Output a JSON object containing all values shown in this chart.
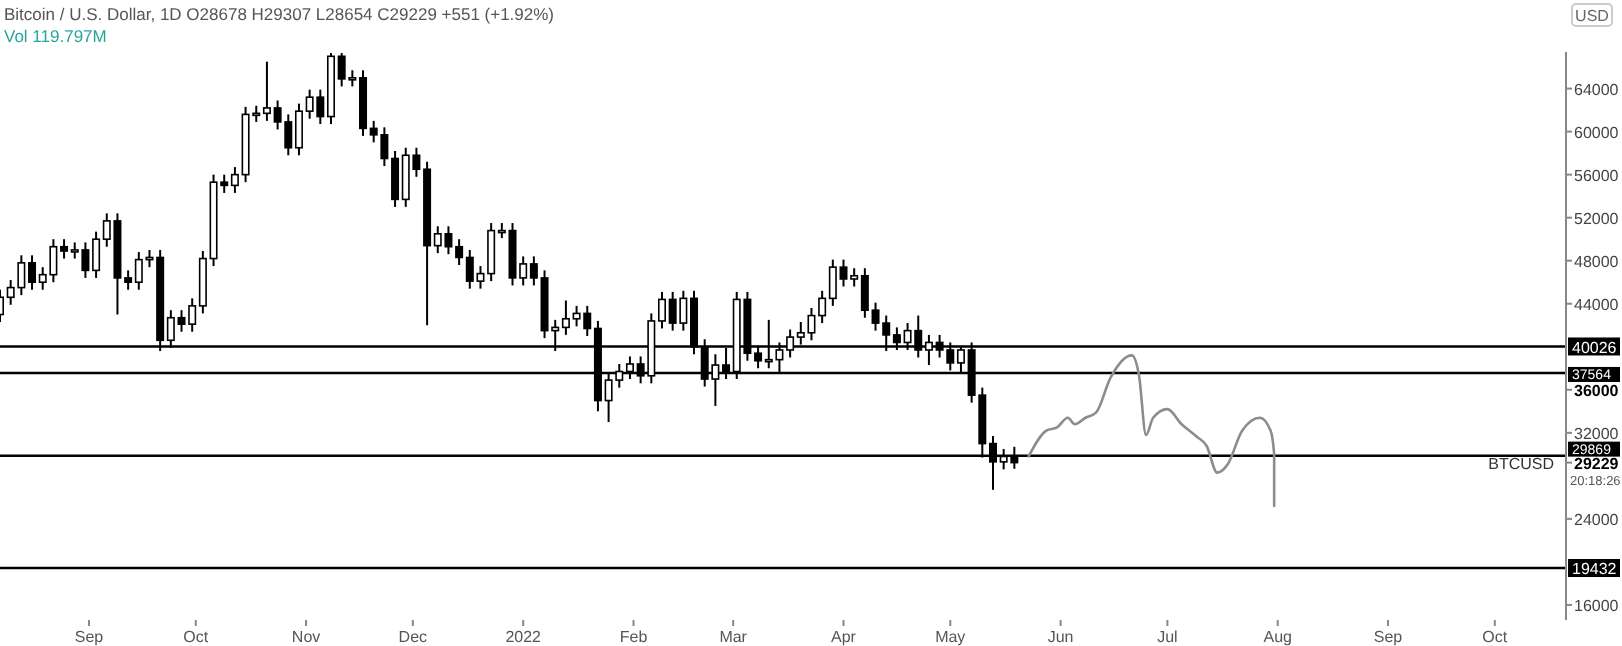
{
  "chart_data": {
    "type": "candlestick",
    "title": "Bitcoin / U.S. Dollar, 1D  O28678 H29307 L28654 C29229 +551 (+1.92%)",
    "ylabel": "USD",
    "xlim": [
      "2021-08-07",
      "2022-10-21"
    ],
    "ylim": [
      14600,
      67400
    ],
    "xticks": [
      {
        "value": "2021-09-01",
        "label": "Sep"
      },
      {
        "value": "2021-10-01",
        "label": "Oct"
      },
      {
        "value": "2021-11-01",
        "label": "Nov"
      },
      {
        "value": "2021-12-01",
        "label": "Dec"
      },
      {
        "value": "2022-01-01",
        "label": "2022"
      },
      {
        "value": "2022-02-01",
        "label": "Feb"
      },
      {
        "value": "2022-03-01",
        "label": "Mar"
      },
      {
        "value": "2022-04-01",
        "label": "Apr"
      },
      {
        "value": "2022-05-01",
        "label": "May"
      },
      {
        "value": "2022-06-01",
        "label": "Jun"
      },
      {
        "value": "2022-07-01",
        "label": "Jul"
      },
      {
        "value": "2022-08-01",
        "label": "Aug"
      },
      {
        "value": "2022-09-01",
        "label": "Sep"
      },
      {
        "value": "2022-10-01",
        "label": "Oct"
      }
    ],
    "yticks": [
      16000,
      24000,
      29229,
      32000,
      36000,
      44000,
      48000,
      52000,
      56000,
      60000,
      64000
    ],
    "x": [
      "2021-08-07",
      "2021-08-10",
      "2021-08-13",
      "2021-08-16",
      "2021-08-19",
      "2021-08-22",
      "2021-08-25",
      "2021-08-28",
      "2021-08-31",
      "2021-09-03",
      "2021-09-06",
      "2021-09-09",
      "2021-09-12",
      "2021-09-15",
      "2021-09-18",
      "2021-09-21",
      "2021-09-24",
      "2021-09-27",
      "2021-09-30",
      "2021-10-03",
      "2021-10-06",
      "2021-10-09",
      "2021-10-12",
      "2021-10-15",
      "2021-10-18",
      "2021-10-21",
      "2021-10-24",
      "2021-10-27",
      "2021-10-30",
      "2021-11-02",
      "2021-11-05",
      "2021-11-08",
      "2021-11-11",
      "2021-11-14",
      "2021-11-17",
      "2021-11-20",
      "2021-11-23",
      "2021-11-26",
      "2021-11-29",
      "2021-12-02",
      "2021-12-05",
      "2021-12-08",
      "2021-12-11",
      "2021-12-14",
      "2021-12-17",
      "2021-12-20",
      "2021-12-23",
      "2021-12-26",
      "2021-12-29",
      "2022-01-01",
      "2022-01-04",
      "2022-01-07",
      "2022-01-10",
      "2022-01-13",
      "2022-01-16",
      "2022-01-19",
      "2022-01-22",
      "2022-01-25",
      "2022-01-28",
      "2022-01-31",
      "2022-02-03",
      "2022-02-06",
      "2022-02-09",
      "2022-02-12",
      "2022-02-15",
      "2022-02-18",
      "2022-02-21",
      "2022-02-24",
      "2022-02-27",
      "2022-03-02",
      "2022-03-05",
      "2022-03-08",
      "2022-03-11",
      "2022-03-14",
      "2022-03-17",
      "2022-03-20",
      "2022-03-23",
      "2022-03-26",
      "2022-03-29",
      "2022-04-01",
      "2022-04-04",
      "2022-04-07",
      "2022-04-10",
      "2022-04-13",
      "2022-04-16",
      "2022-04-19",
      "2022-04-22",
      "2022-04-25",
      "2022-04-28",
      "2022-05-01",
      "2022-05-04",
      "2022-05-07",
      "2022-05-10",
      "2022-05-13",
      "2022-05-16",
      "2022-05-19"
    ],
    "ohlc": [
      [
        43000,
        45300,
        42300,
        44600
      ],
      [
        44600,
        46200,
        43900,
        45500
      ],
      [
        45500,
        48500,
        44800,
        47800
      ],
      [
        47800,
        48500,
        45300,
        46000
      ],
      [
        46000,
        47400,
        45300,
        46700
      ],
      [
        46700,
        50000,
        46000,
        49300
      ],
      [
        49300,
        50000,
        48200,
        48900
      ],
      [
        48900,
        49700,
        48200,
        49000
      ],
      [
        49000,
        49700,
        46400,
        47100
      ],
      [
        47100,
        50700,
        46400,
        50000
      ],
      [
        50000,
        52400,
        49300,
        51700
      ],
      [
        51700,
        52400,
        43000,
        46400
      ],
      [
        46400,
        47100,
        45300,
        46000
      ],
      [
        46000,
        48800,
        45300,
        48100
      ],
      [
        48100,
        49000,
        47400,
        48300
      ],
      [
        48300,
        49000,
        39600,
        40600
      ],
      [
        40600,
        43400,
        39900,
        42700
      ],
      [
        42700,
        43400,
        41400,
        42100
      ],
      [
        42100,
        44500,
        41400,
        43800
      ],
      [
        43800,
        48900,
        43100,
        48200
      ],
      [
        48200,
        56000,
        47500,
        55300
      ],
      [
        55300,
        56000,
        54300,
        55000
      ],
      [
        55000,
        56700,
        54300,
        56000
      ],
      [
        56000,
        62300,
        55300,
        61600
      ],
      [
        61600,
        62400,
        60900,
        61700
      ],
      [
        61700,
        66500,
        61000,
        62200
      ],
      [
        62200,
        62900,
        60200,
        60900
      ],
      [
        60900,
        61600,
        57800,
        58500
      ],
      [
        58500,
        62600,
        57800,
        61900
      ],
      [
        61900,
        63900,
        61200,
        63200
      ],
      [
        63200,
        63900,
        60700,
        61400
      ],
      [
        61400,
        67300,
        60700,
        67000
      ],
      [
        67000,
        67300,
        64200,
        64900
      ],
      [
        64900,
        65700,
        64200,
        65000
      ],
      [
        65000,
        65700,
        59600,
        60300
      ],
      [
        60300,
        61000,
        59000,
        59700
      ],
      [
        59700,
        60400,
        56800,
        57500
      ],
      [
        57500,
        58200,
        53000,
        53700
      ],
      [
        53700,
        58500,
        53000,
        57800
      ],
      [
        57800,
        58500,
        55800,
        56500
      ],
      [
        56500,
        57200,
        42000,
        49400
      ],
      [
        49400,
        51200,
        48700,
        50500
      ],
      [
        50500,
        51200,
        48600,
        49300
      ],
      [
        49300,
        50000,
        47600,
        48300
      ],
      [
        48300,
        49000,
        45400,
        46100
      ],
      [
        46100,
        47500,
        45400,
        46800
      ],
      [
        46800,
        51500,
        46100,
        50800
      ],
      [
        50800,
        51500,
        50100,
        50800
      ],
      [
        50800,
        51500,
        45700,
        46400
      ],
      [
        46400,
        48400,
        45700,
        47700
      ],
      [
        47700,
        48400,
        45700,
        46400
      ],
      [
        46400,
        47100,
        40800,
        41500
      ],
      [
        41500,
        42500,
        39600,
        41800
      ],
      [
        41800,
        44300,
        41100,
        42600
      ],
      [
        42600,
        43800,
        41900,
        43100
      ],
      [
        43100,
        43800,
        41000,
        41700
      ],
      [
        41700,
        42400,
        34000,
        35000
      ],
      [
        35000,
        37600,
        33000,
        36900
      ],
      [
        36900,
        38400,
        36200,
        37700
      ],
      [
        37700,
        39100,
        37000,
        38400
      ],
      [
        38400,
        39100,
        36600,
        37300
      ],
      [
        37300,
        43100,
        36600,
        42400
      ],
      [
        42400,
        45100,
        41700,
        44400
      ],
      [
        44400,
        45100,
        41500,
        42200
      ],
      [
        42200,
        45200,
        41500,
        44500
      ],
      [
        44500,
        45200,
        39300,
        40000
      ],
      [
        40000,
        40700,
        36300,
        37000
      ],
      [
        37000,
        39300,
        34500,
        38300
      ],
      [
        38300,
        39900,
        37000,
        37700
      ],
      [
        37700,
        45100,
        37000,
        44400
      ],
      [
        44400,
        45100,
        38700,
        39400
      ],
      [
        39400,
        40100,
        38000,
        38700
      ],
      [
        38700,
        42500,
        38000,
        38800
      ],
      [
        38800,
        40400,
        37600,
        39700
      ],
      [
        39700,
        41600,
        39000,
        40900
      ],
      [
        40900,
        42300,
        40200,
        41300
      ],
      [
        41300,
        43600,
        40600,
        42900
      ],
      [
        42900,
        45200,
        42200,
        44500
      ],
      [
        44500,
        48100,
        43800,
        47400
      ],
      [
        47400,
        48100,
        45600,
        46300
      ],
      [
        46300,
        47300,
        45600,
        46600
      ],
      [
        46600,
        47300,
        42700,
        43400
      ],
      [
        43400,
        44100,
        41500,
        42200
      ],
      [
        42200,
        42900,
        39600,
        41100
      ],
      [
        41100,
        41800,
        39700,
        40400
      ],
      [
        40400,
        42200,
        39700,
        41500
      ],
      [
        41500,
        42900,
        39000,
        39700
      ],
      [
        39700,
        41100,
        38300,
        40400
      ],
      [
        40400,
        41100,
        39000,
        39700
      ],
      [
        39700,
        40400,
        37800,
        38500
      ],
      [
        38500,
        40026,
        37500,
        39700
      ],
      [
        39700,
        40400,
        34800,
        35500
      ],
      [
        35500,
        36200,
        29700,
        31000
      ],
      [
        31000,
        31700,
        26700,
        29300
      ],
      [
        29300,
        30500,
        28600,
        29800
      ],
      [
        29800,
        30700,
        28654,
        29229
      ]
    ],
    "series": [
      {
        "type": "line",
        "color": "#8c8c8c",
        "x": [
          "2022-05-23",
          "2022-05-28",
          "2022-05-31",
          "2022-06-03",
          "2022-06-05",
          "2022-06-08",
          "2022-06-11",
          "2022-06-15",
          "2022-06-21",
          "2022-06-23",
          "2022-06-25",
          "2022-06-27",
          "2022-07-01",
          "2022-07-05",
          "2022-07-09",
          "2022-07-12",
          "2022-07-15",
          "2022-07-18",
          "2022-07-22",
          "2022-07-27",
          "2022-07-30",
          "2022-07-31",
          "2022-07-31"
        ],
        "values": [
          29800,
          32200,
          32500,
          33400,
          32800,
          33400,
          33900,
          37100,
          39200,
          37400,
          31800,
          33400,
          34200,
          32800,
          31700,
          30800,
          28300,
          29100,
          32200,
          33400,
          32200,
          30000,
          25200
        ]
      }
    ],
    "ref_lines": [
      {
        "axis": "y",
        "value": 40026,
        "label": "40026",
        "color": "#000000"
      },
      {
        "axis": "y",
        "value": 37564,
        "label": "37564",
        "color": "#000000"
      },
      {
        "axis": "y",
        "value": 29869,
        "label": "29869",
        "color": "#000000"
      },
      {
        "axis": "y",
        "value": 19432,
        "label": "19432",
        "color": "#000000"
      }
    ],
    "annotations": [
      "Vol 119.797M",
      "20:18:26",
      {
        "text": "BTCUSD",
        "y": 29229
      }
    ]
  }
}
